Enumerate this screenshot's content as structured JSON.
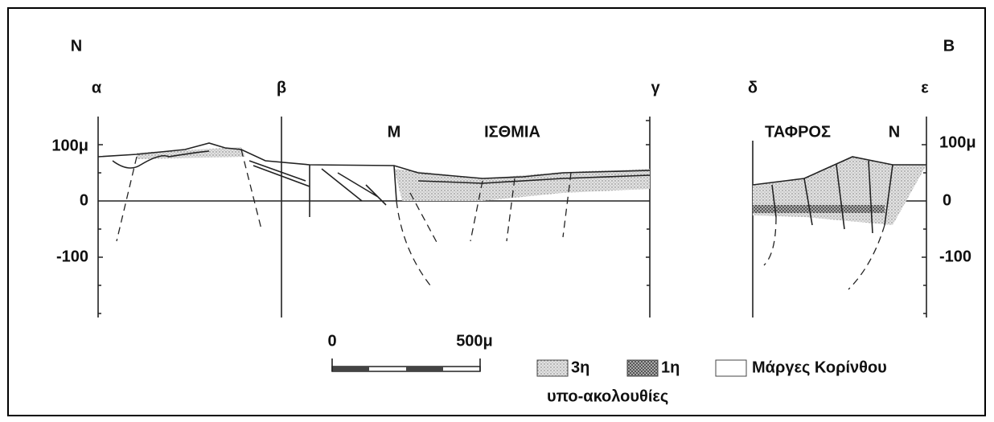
{
  "orientation": {
    "left": "Ν",
    "right": "Β"
  },
  "section_points": [
    "α",
    "β",
    "γ",
    "δ",
    "ε"
  ],
  "places": {
    "m": "Μ",
    "isthmia": "ΙΣΘΜΙΑ",
    "tafros": "ΤΑΦΡΟΣ",
    "n": "Ν"
  },
  "left_axis": {
    "top": "100μ",
    "zero": "0",
    "bottom": "-100"
  },
  "right_axis": {
    "top": "100μ",
    "zero": "0",
    "bottom": "-100"
  },
  "scale_bar": {
    "start": "0",
    "end": "500μ"
  },
  "legend": {
    "items": [
      "3η",
      "1η",
      "Μάργες Κορίνθου"
    ],
    "caption": "υπο-ακολουθίες"
  }
}
